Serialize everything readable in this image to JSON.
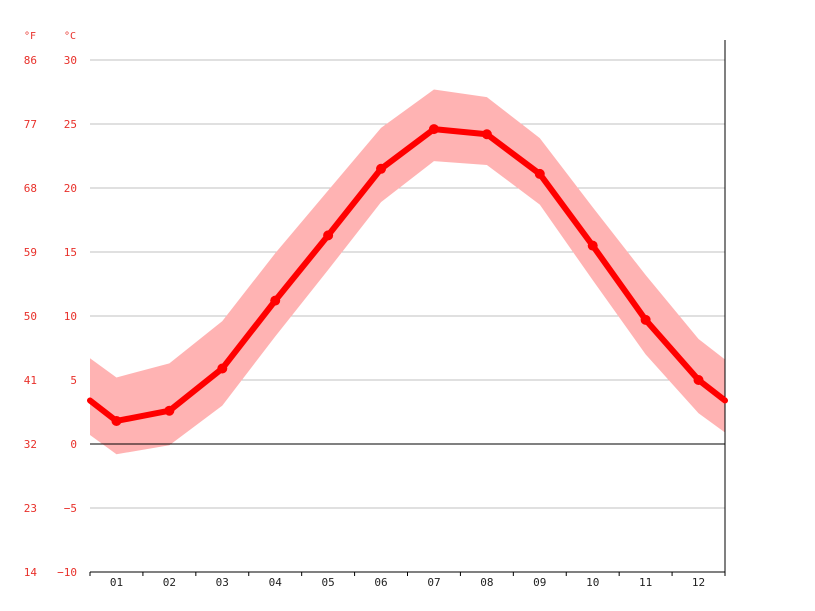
{
  "chart_data": {
    "type": "line",
    "title": "",
    "xlabel": "",
    "ylabel": "",
    "unit_f": "°F",
    "unit_c": "°C",
    "categories": [
      "01",
      "02",
      "03",
      "04",
      "05",
      "06",
      "07",
      "08",
      "09",
      "10",
      "11",
      "12"
    ],
    "ylim": [
      -10,
      30
    ],
    "yticks_c": [
      "30",
      "25",
      "20",
      "15",
      "10",
      "5",
      "0",
      "−5",
      "−10"
    ],
    "yticks_f": [
      "86",
      "77",
      "68",
      "59",
      "50",
      "41",
      "32",
      "23",
      "14"
    ],
    "grid": true,
    "series": [
      {
        "values": [
          1.8,
          2.6,
          5.9,
          11.2,
          16.3,
          21.5,
          24.6,
          24.2,
          21.1,
          15.5,
          9.7,
          5.0
        ]
      }
    ],
    "band": {
      "upper": [
        5.2,
        6.3,
        9.6,
        14.9,
        19.8,
        24.7,
        27.7,
        27.1,
        23.9,
        18.5,
        13.2,
        8.2
      ],
      "lower": [
        -0.8,
        -0.1,
        3.0,
        8.4,
        13.6,
        18.9,
        22.1,
        21.8,
        18.7,
        12.8,
        7.0,
        2.4
      ]
    },
    "edge_values": {
      "left": 3.4,
      "right": 3.4
    },
    "edge_band": {
      "left": [
        6.7,
        0.7
      ],
      "right": [
        6.6,
        0.9
      ]
    },
    "colors": {
      "line": "#ff0000",
      "band": "#ffb3b3",
      "label": "#e8302a",
      "grid": "#c0c0c0",
      "axis": "#000000"
    }
  }
}
